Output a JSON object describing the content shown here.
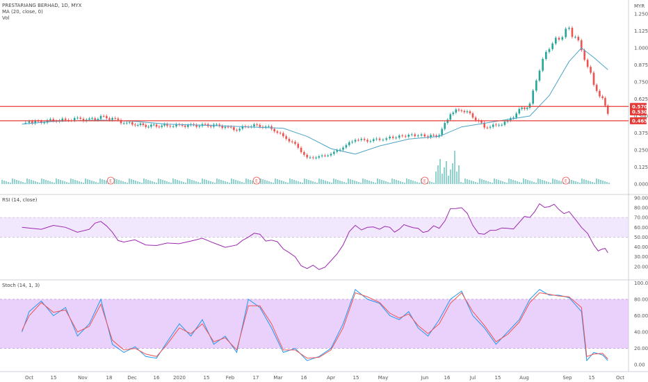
{
  "chart_data": [
    {
      "type": "candlestick",
      "title": "PRESTARIANG BERHAD, 1D, MYX",
      "indicators": [
        "MA (20, close, 0)",
        "Vol"
      ],
      "currency": "MYR",
      "yticks": [
        "1.250",
        "1.125",
        "1.000",
        "0.875",
        "0.750",
        "0.625",
        "0.500",
        "0.375",
        "0.250",
        "0.125",
        "0.000"
      ],
      "ylim": [
        0,
        1.25
      ],
      "price_labels": [
        {
          "text": "0.570",
          "value": 0.57,
          "color": "#e53935"
        },
        {
          "text": "0.530",
          "value": 0.53,
          "color": "#e53935"
        },
        {
          "text": "0.465",
          "value": 0.465,
          "color": "#e53935"
        }
      ],
      "horizontal_lines": [
        0.57,
        0.465
      ],
      "earnings_markers": [
        "Nov 18",
        "Feb 17",
        "Jun 1",
        "Aug 31"
      ],
      "earnings_label": "E",
      "close_points": [
        [
          "Sep 25",
          0.45
        ],
        [
          "Oct 1",
          0.45
        ],
        [
          "Oct 8",
          0.46
        ],
        [
          "Oct 15",
          0.47
        ],
        [
          "Oct 22",
          0.47
        ],
        [
          "Oct 29",
          0.48
        ],
        [
          "Nov 5",
          0.47
        ],
        [
          "Nov 12",
          0.49
        ],
        [
          "Nov 19",
          0.48
        ],
        [
          "Nov 26",
          0.45
        ],
        [
          "Dec 3",
          0.44
        ],
        [
          "Dec 10",
          0.43
        ],
        [
          "Dec 17",
          0.43
        ],
        [
          "Dec 24",
          0.43
        ],
        [
          "Jan 1",
          0.43
        ],
        [
          "Jan 8",
          0.43
        ],
        [
          "Jan 15",
          0.43
        ],
        [
          "Jan 22",
          0.43
        ],
        [
          "Jan 29",
          0.42
        ],
        [
          "Feb 5",
          0.4
        ],
        [
          "Feb 12",
          0.43
        ],
        [
          "Feb 19",
          0.43
        ],
        [
          "Feb 26",
          0.41
        ],
        [
          "Mar 4",
          0.35
        ],
        [
          "Mar 11",
          0.29
        ],
        [
          "Mar 18",
          0.19
        ],
        [
          "Mar 25",
          0.2
        ],
        [
          "Apr 1",
          0.22
        ],
        [
          "Apr 8",
          0.27
        ],
        [
          "Apr 15",
          0.33
        ],
        [
          "Apr 22",
          0.32
        ],
        [
          "Apr 29",
          0.33
        ],
        [
          "May 6",
          0.34
        ],
        [
          "May 13",
          0.35
        ],
        [
          "May 20",
          0.36
        ],
        [
          "May 27",
          0.36
        ],
        [
          "Jun 3",
          0.35
        ],
        [
          "Jun 10",
          0.36
        ],
        [
          "Jun 17",
          0.52
        ],
        [
          "Jun 24",
          0.55
        ],
        [
          "Jul 1",
          0.5
        ],
        [
          "Jul 8",
          0.42
        ],
        [
          "Jul 15",
          0.43
        ],
        [
          "Jul 22",
          0.46
        ],
        [
          "Jul 29",
          0.54
        ],
        [
          "Aug 5",
          0.58
        ],
        [
          "Aug 12",
          0.85
        ],
        [
          "Aug 19",
          1.01
        ],
        [
          "Aug 26",
          1.07
        ],
        [
          "Sep 2",
          1.14
        ],
        [
          "Sep 9",
          1.0
        ],
        [
          "Sep 16",
          0.73
        ],
        [
          "Sep 21",
          0.62
        ],
        [
          "Sep 24",
          0.53
        ]
      ],
      "ma_points": [
        [
          "Sep 25",
          0.44
        ],
        [
          "Oct 15",
          0.46
        ],
        [
          "Nov 12",
          0.47
        ],
        [
          "Dec 3",
          0.46
        ],
        [
          "Dec 24",
          0.44
        ],
        [
          "Jan 22",
          0.43
        ],
        [
          "Feb 12",
          0.42
        ],
        [
          "Mar 4",
          0.41
        ],
        [
          "Mar 18",
          0.35
        ],
        [
          "Apr 1",
          0.26
        ],
        [
          "Apr 15",
          0.22
        ],
        [
          "Apr 29",
          0.28
        ],
        [
          "May 20",
          0.33
        ],
        [
          "Jun 10",
          0.35
        ],
        [
          "Jun 24",
          0.42
        ],
        [
          "Jul 15",
          0.46
        ],
        [
          "Aug 5",
          0.5
        ],
        [
          "Aug 19",
          0.65
        ],
        [
          "Sep 2",
          0.9
        ],
        [
          "Sep 9",
          1.0
        ],
        [
          "Sep 16",
          0.93
        ],
        [
          "Sep 24",
          0.84
        ]
      ],
      "xticks": [
        "Oct",
        "15",
        "Nov",
        "18",
        "Dec",
        "16",
        "2020",
        "15",
        "Feb",
        "17",
        "Mar",
        "16",
        "Apr",
        "15",
        "May",
        "Jun",
        "16",
        "Jul",
        "15",
        "Aug",
        "Sep",
        "15",
        "Oct"
      ]
    },
    {
      "type": "line",
      "title": "RSI (14, close)",
      "yticks": [
        "90.00",
        "80.00",
        "70.00",
        "60.00",
        "50.00",
        "40.00",
        "30.00",
        "20.00"
      ],
      "ylim": [
        10,
        92
      ],
      "band": [
        50,
        70
      ],
      "values": [
        [
          "Sep 25",
          60
        ],
        [
          "Oct 8",
          58
        ],
        [
          "Oct 22",
          60
        ],
        [
          "Nov 5",
          58
        ],
        [
          "Nov 12",
          66
        ],
        [
          "Nov 19",
          55
        ],
        [
          "Nov 26",
          45
        ],
        [
          "Dec 10",
          42
        ],
        [
          "Dec 24",
          44
        ],
        [
          "Jan 8",
          46
        ],
        [
          "Jan 22",
          44
        ],
        [
          "Feb 5",
          42
        ],
        [
          "Feb 12",
          50
        ],
        [
          "Feb 19",
          53
        ],
        [
          "Feb 26",
          47
        ],
        [
          "Mar 4",
          38
        ],
        [
          "Mar 11",
          30
        ],
        [
          "Mar 18",
          18
        ],
        [
          "Mar 25",
          17
        ],
        [
          "Apr 1",
          26
        ],
        [
          "Apr 8",
          42
        ],
        [
          "Apr 15",
          62
        ],
        [
          "Apr 22",
          60
        ],
        [
          "Apr 29",
          58
        ],
        [
          "May 6",
          60
        ],
        [
          "May 13",
          58
        ],
        [
          "May 20",
          61
        ],
        [
          "May 27",
          59
        ],
        [
          "Jun 3",
          56
        ],
        [
          "Jun 10",
          59
        ],
        [
          "Jun 17",
          79
        ],
        [
          "Jun 24",
          80
        ],
        [
          "Jul 1",
          62
        ],
        [
          "Jul 8",
          53
        ],
        [
          "Jul 15",
          57
        ],
        [
          "Jul 22",
          59
        ],
        [
          "Jul 29",
          65
        ],
        [
          "Aug 5",
          70
        ],
        [
          "Aug 12",
          84
        ],
        [
          "Aug 19",
          81
        ],
        [
          "Aug 26",
          78
        ],
        [
          "Sep 2",
          76
        ],
        [
          "Sep 9",
          60
        ],
        [
          "Sep 16",
          42
        ],
        [
          "Sep 21",
          38
        ],
        [
          "Sep 24",
          34
        ]
      ]
    },
    {
      "type": "line",
      "title": "Stoch (14, 1, 3)",
      "yticks": [
        "100.00",
        "80.00",
        "60.00",
        "40.00",
        "20.00",
        "0.00"
      ],
      "ylim": [
        -5,
        102
      ],
      "band": [
        20,
        80
      ],
      "series": [
        {
          "color": "#2196f3",
          "values": [
            [
              "Sep 25",
              40
            ],
            [
              "Oct 1",
              65
            ],
            [
              "Oct 8",
              78
            ],
            [
              "Oct 15",
              60
            ],
            [
              "Oct 22",
              70
            ],
            [
              "Oct 29",
              35
            ],
            [
              "Nov 5",
              50
            ],
            [
              "Nov 12",
              80
            ],
            [
              "Nov 19",
              25
            ],
            [
              "Nov 26",
              15
            ],
            [
              "Dec 3",
              22
            ],
            [
              "Dec 10",
              10
            ],
            [
              "Dec 17",
              8
            ],
            [
              "Dec 24",
              28
            ],
            [
              "Jan 1",
              50
            ],
            [
              "Jan 8",
              35
            ],
            [
              "Jan 15",
              55
            ],
            [
              "Jan 22",
              25
            ],
            [
              "Jan 29",
              35
            ],
            [
              "Feb 5",
              15
            ],
            [
              "Feb 12",
              80
            ],
            [
              "Feb 19",
              70
            ],
            [
              "Feb 26",
              45
            ],
            [
              "Mar 4",
              15
            ],
            [
              "Mar 11",
              20
            ],
            [
              "Mar 18",
              5
            ],
            [
              "Mar 25",
              10
            ],
            [
              "Apr 1",
              20
            ],
            [
              "Apr 8",
              50
            ],
            [
              "Apr 15",
              92
            ],
            [
              "Apr 22",
              80
            ],
            [
              "Apr 29",
              75
            ],
            [
              "May 6",
              60
            ],
            [
              "May 13",
              55
            ],
            [
              "May 20",
              65
            ],
            [
              "May 27",
              45
            ],
            [
              "Jun 3",
              35
            ],
            [
              "Jun 10",
              55
            ],
            [
              "Jun 17",
              80
            ],
            [
              "Jun 24",
              90
            ],
            [
              "Jul 1",
              60
            ],
            [
              "Jul 8",
              45
            ],
            [
              "Jul 15",
              25
            ],
            [
              "Jul 22",
              40
            ],
            [
              "Jul 29",
              55
            ],
            [
              "Aug 5",
              80
            ],
            [
              "Aug 12",
              92
            ],
            [
              "Aug 19",
              85
            ],
            [
              "Aug 26",
              85
            ],
            [
              "Sep 2",
              82
            ],
            [
              "Sep 9",
              65
            ],
            [
              "Sep 12",
              5
            ],
            [
              "Sep 16",
              15
            ],
            [
              "Sep 21",
              12
            ],
            [
              "Sep 24",
              5
            ]
          ]
        },
        {
          "color": "#ef5350",
          "values": [
            [
              "Sep 25",
              42
            ],
            [
              "Oct 1",
              60
            ],
            [
              "Oct 8",
              76
            ],
            [
              "Oct 15",
              64
            ],
            [
              "Oct 22",
              67
            ],
            [
              "Oct 29",
              40
            ],
            [
              "Nov 5",
              47
            ],
            [
              "Nov 12",
              74
            ],
            [
              "Nov 19",
              30
            ],
            [
              "Nov 26",
              18
            ],
            [
              "Dec 3",
              20
            ],
            [
              "Dec 10",
              13
            ],
            [
              "Dec 17",
              10
            ],
            [
              "Dec 24",
              25
            ],
            [
              "Jan 1",
              45
            ],
            [
              "Jan 8",
              38
            ],
            [
              "Jan 15",
              50
            ],
            [
              "Jan 22",
              28
            ],
            [
              "Jan 29",
              33
            ],
            [
              "Feb 5",
              18
            ],
            [
              "Feb 12",
              72
            ],
            [
              "Feb 19",
              72
            ],
            [
              "Feb 26",
              50
            ],
            [
              "Mar 4",
              18
            ],
            [
              "Mar 11",
              18
            ],
            [
              "Mar 18",
              8
            ],
            [
              "Mar 25",
              9
            ],
            [
              "Apr 1",
              18
            ],
            [
              "Apr 8",
              45
            ],
            [
              "Apr 15",
              88
            ],
            [
              "Apr 22",
              83
            ],
            [
              "Apr 29",
              76
            ],
            [
              "May 6",
              63
            ],
            [
              "May 13",
              57
            ],
            [
              "May 20",
              62
            ],
            [
              "May 27",
              48
            ],
            [
              "Jun 3",
              38
            ],
            [
              "Jun 10",
              50
            ],
            [
              "Jun 17",
              75
            ],
            [
              "Jun 24",
              88
            ],
            [
              "Jul 1",
              65
            ],
            [
              "Jul 8",
              48
            ],
            [
              "Jul 15",
              28
            ],
            [
              "Jul 22",
              37
            ],
            [
              "Jul 29",
              52
            ],
            [
              "Aug 5",
              76
            ],
            [
              "Aug 12",
              88
            ],
            [
              "Aug 19",
              86
            ],
            [
              "Aug 26",
              84
            ],
            [
              "Sep 2",
              83
            ],
            [
              "Sep 9",
              70
            ],
            [
              "Sep 12",
              10
            ],
            [
              "Sep 16",
              13
            ],
            [
              "Sep 21",
              14
            ],
            [
              "Sep 24",
              7
            ]
          ]
        }
      ]
    }
  ]
}
